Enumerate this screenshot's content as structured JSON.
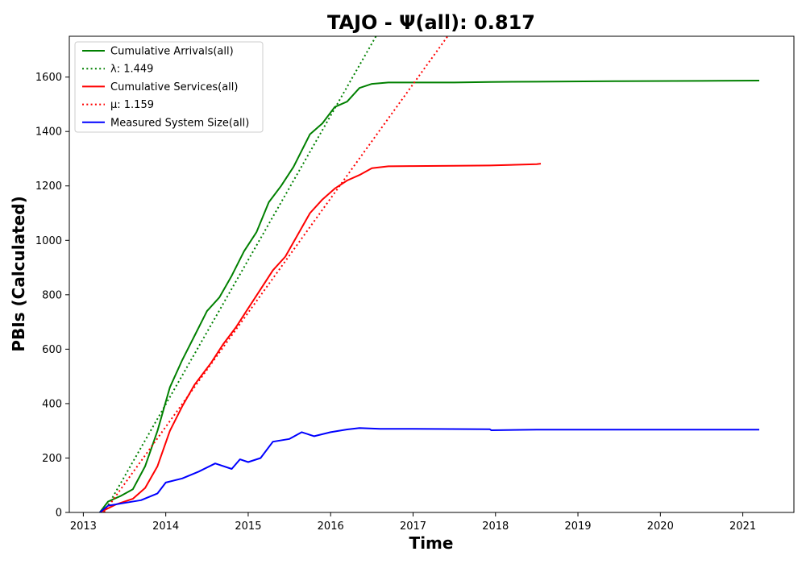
{
  "chart_data": {
    "type": "line",
    "title": "TAJO -  Ψ(all): 0.817",
    "xlabel": "Time",
    "ylabel": "PBIs (Calculated)",
    "xlim": [
      2012.83,
      2021.62
    ],
    "ylim": [
      0,
      1750
    ],
    "x_ticks": [
      2013,
      2014,
      2015,
      2016,
      2017,
      2018,
      2019,
      2020,
      2021
    ],
    "x_tick_labels": [
      "2013",
      "2014",
      "2015",
      "2016",
      "2017",
      "2018",
      "2019",
      "2020",
      "2021"
    ],
    "y_ticks": [
      0,
      200,
      400,
      600,
      800,
      1000,
      1200,
      1400,
      1600
    ],
    "y_tick_labels": [
      "0",
      "200",
      "400",
      "600",
      "800",
      "1000",
      "1200",
      "1400",
      "1600"
    ],
    "grid": false,
    "legend_position": "top-left",
    "series": [
      {
        "name": "Cumulative Arrivals(all)",
        "color": "#008000",
        "style": "solid",
        "x": [
          2013.2,
          2013.3,
          2013.45,
          2013.6,
          2013.75,
          2013.9,
          2014.05,
          2014.2,
          2014.35,
          2014.5,
          2014.65,
          2014.8,
          2014.95,
          2015.1,
          2015.25,
          2015.4,
          2015.55,
          2015.75,
          2015.9,
          2016.05,
          2016.2,
          2016.35,
          2016.5,
          2016.7,
          2017.0,
          2017.5,
          2017.93,
          2018.5,
          2019.5,
          2020.5,
          2021.2
        ],
        "y": [
          0,
          40,
          60,
          85,
          170,
          300,
          460,
          560,
          650,
          740,
          790,
          870,
          960,
          1030,
          1140,
          1200,
          1270,
          1390,
          1430,
          1490,
          1510,
          1560,
          1575,
          1580,
          1580,
          1580,
          1582,
          1583,
          1585,
          1586,
          1587
        ]
      },
      {
        "name": "λ: 1.449",
        "color": "#008000",
        "style": "dotted",
        "x": [
          2013.25,
          2016.55
        ],
        "y": [
          0,
          1750
        ]
      },
      {
        "name": "Cumulative Services(all)",
        "color": "#ff0000",
        "style": "solid",
        "x": [
          2013.2,
          2013.4,
          2013.6,
          2013.75,
          2013.9,
          2014.05,
          2014.2,
          2014.35,
          2014.55,
          2014.7,
          2014.85,
          2015.0,
          2015.15,
          2015.3,
          2015.45,
          2015.6,
          2015.75,
          2015.9,
          2016.05,
          2016.2,
          2016.35,
          2016.5,
          2016.7,
          2017.0,
          2017.5,
          2017.93,
          2018.5,
          2018.55
        ],
        "y": [
          0,
          30,
          50,
          90,
          170,
          300,
          390,
          470,
          550,
          620,
          680,
          750,
          820,
          890,
          940,
          1020,
          1100,
          1150,
          1190,
          1220,
          1240,
          1265,
          1272,
          1273,
          1274,
          1275,
          1280,
          1282
        ]
      },
      {
        "name": "μ: 1.159",
        "color": "#ff0000",
        "style": "dotted",
        "x": [
          2013.25,
          2017.42
        ],
        "y": [
          0,
          1750
        ]
      },
      {
        "name": "Measured System Size(all)",
        "color": "#0000ff",
        "style": "solid",
        "x": [
          2013.2,
          2013.3,
          2013.5,
          2013.7,
          2013.9,
          2014.0,
          2014.2,
          2014.4,
          2014.6,
          2014.8,
          2014.9,
          2015.0,
          2015.15,
          2015.3,
          2015.5,
          2015.65,
          2015.8,
          2016.0,
          2016.2,
          2016.35,
          2016.6,
          2017.0,
          2017.93,
          2017.95,
          2018.5,
          2019.5,
          2020.5,
          2021.2
        ],
        "y": [
          0,
          25,
          35,
          45,
          70,
          110,
          125,
          150,
          180,
          160,
          195,
          185,
          200,
          260,
          270,
          295,
          280,
          295,
          305,
          310,
          307,
          307,
          306,
          302,
          304,
          304,
          304,
          304
        ]
      }
    ]
  }
}
